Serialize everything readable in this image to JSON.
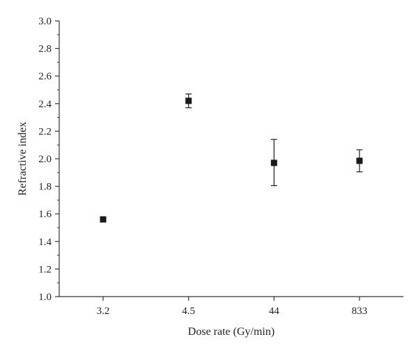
{
  "chart_data": {
    "type": "scatter",
    "title": "",
    "xlabel": "Dose rate (Gy/min)",
    "ylabel": "Refractive index",
    "categories": [
      "3.2",
      "4.5",
      "44",
      "833"
    ],
    "series": [
      {
        "values": [
          1.56,
          2.42,
          1.97,
          1.985
        ],
        "error_low": [
          1.56,
          2.37,
          1.805,
          1.905
        ],
        "error_high": [
          1.56,
          2.47,
          2.14,
          2.065
        ]
      }
    ],
    "ylim": [
      1.0,
      3.0
    ],
    "yticks": [
      "1.0",
      "1.2",
      "1.4",
      "1.6",
      "1.8",
      "2.0",
      "2.2",
      "2.4",
      "2.6",
      "2.8",
      "3.0"
    ],
    "grid": false,
    "legend": "none",
    "marker": "square",
    "color": "#1a1a1a"
  }
}
